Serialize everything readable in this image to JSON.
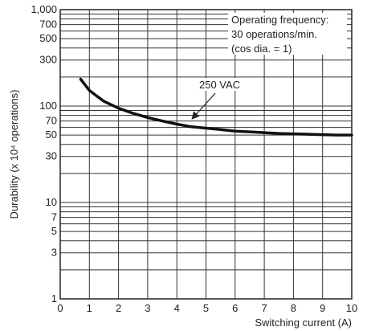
{
  "chart_data": {
    "type": "line",
    "title": "",
    "xlabel": "Switching current (A)",
    "ylabel": "Durability (x 10⁴ operations)",
    "xlim": [
      0,
      10
    ],
    "ylim": [
      1,
      1000
    ],
    "y_scale": "log",
    "grid": true,
    "x_ticks": [
      0,
      1,
      2,
      3,
      4,
      5,
      6,
      7,
      8,
      9,
      10
    ],
    "x_tick_labels": [
      "0",
      "1",
      "2",
      "3",
      "4",
      "5",
      "6",
      "7",
      "8",
      "9",
      "10"
    ],
    "y_ticks": [
      1,
      3,
      5,
      7,
      10,
      30,
      50,
      70,
      100,
      300,
      500,
      700,
      1000
    ],
    "y_tick_labels": [
      "1",
      "3",
      "5",
      "7",
      "10",
      "30",
      "50",
      "70",
      "100",
      "300",
      "500",
      "700",
      "1,000"
    ],
    "series": [
      {
        "name": "250 VAC",
        "x": [
          0.7,
          1.0,
          1.5,
          2.0,
          2.5,
          3.0,
          3.5,
          4.0,
          4.5,
          5.0,
          5.5,
          6.0,
          6.5,
          7.0,
          7.5,
          8.0,
          8.5,
          9.0,
          9.5,
          10.0
        ],
        "y": [
          190,
          145,
          112,
          95,
          84,
          76,
          70,
          65,
          61,
          59,
          57,
          55,
          54,
          53,
          52,
          51.5,
          51,
          50.5,
          50,
          50
        ]
      }
    ],
    "annotations": [
      {
        "lines": [
          "Operating frequency:",
          "30 operations/min.",
          "(cos dia. = 1)"
        ]
      },
      {
        "text": "250 VAC"
      }
    ]
  }
}
